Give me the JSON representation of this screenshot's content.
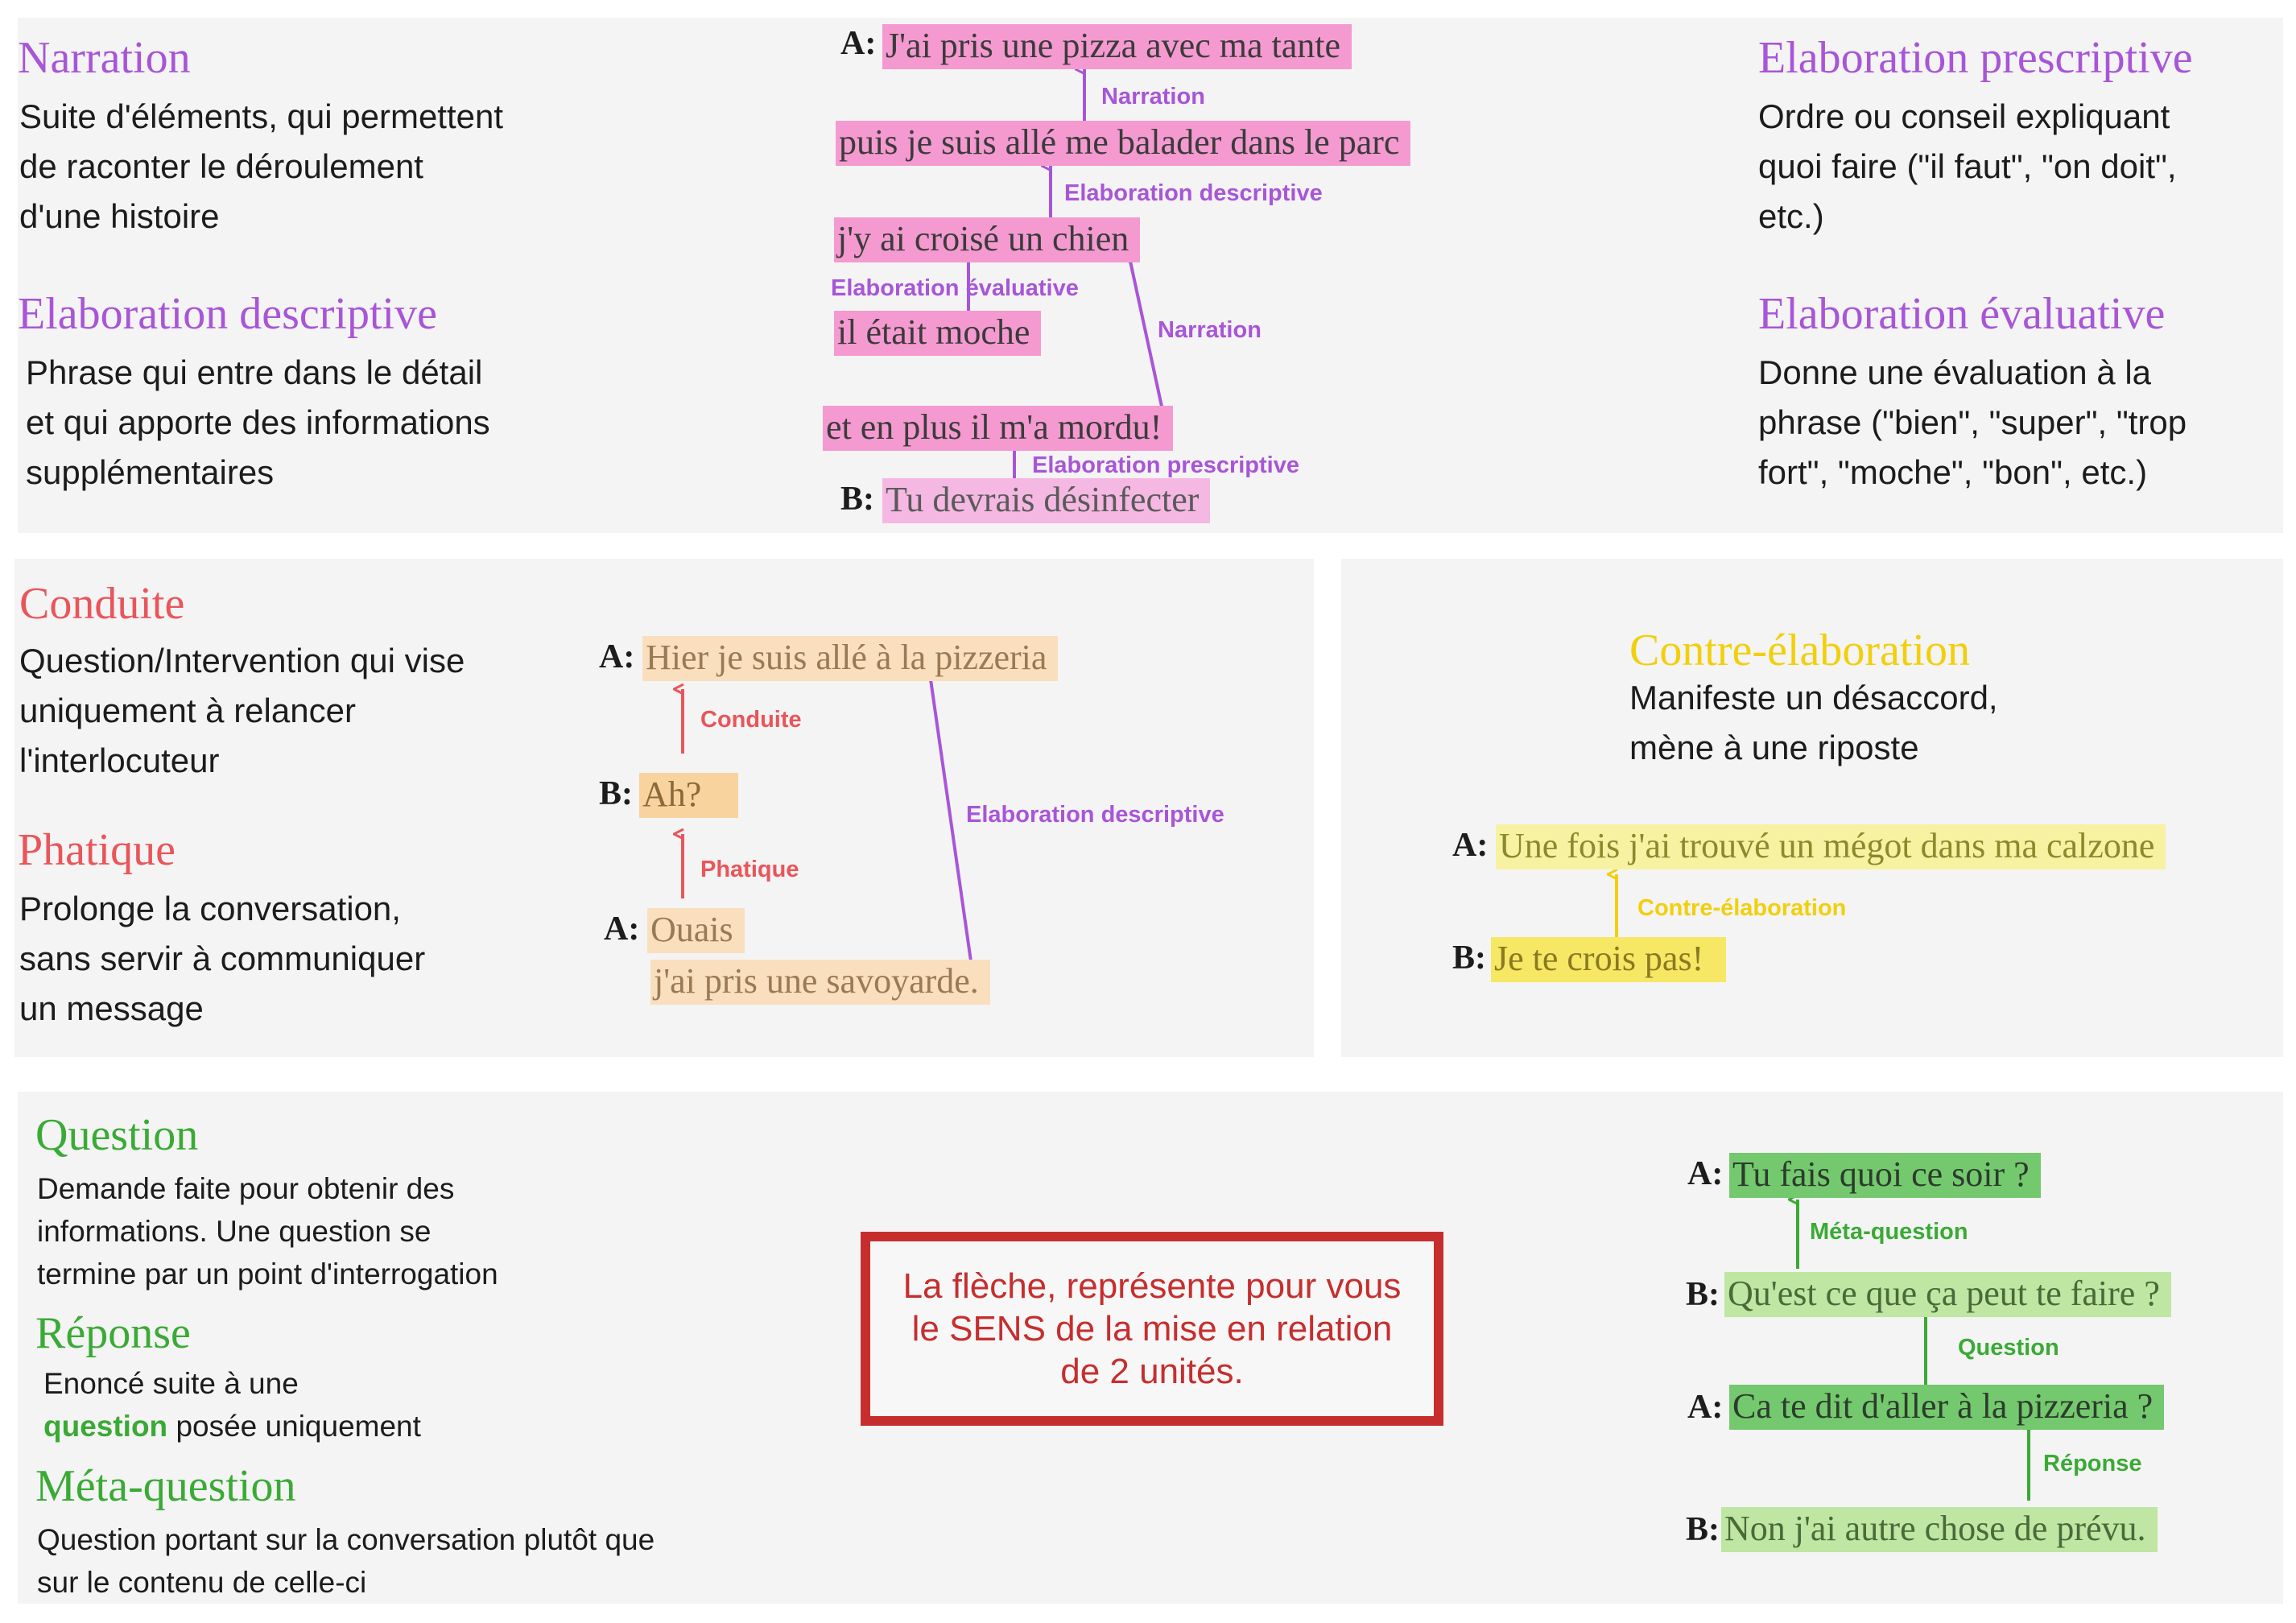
{
  "colors": {
    "purple": "#a855d8",
    "red": "#e9555a",
    "yellow": "#f2cf0a",
    "green": "#3aaa35",
    "note_border": "#c62e2e",
    "panel_bg": "#f4f4f4"
  },
  "narrative_panel": {
    "left_defs": [
      {
        "title": "Narration",
        "lines": [
          "Suite d'éléments, qui permettent",
          "de raconter le déroulement",
          "d'une histoire"
        ]
      },
      {
        "title": "Elaboration descriptive",
        "lines": [
          "Phrase qui entre dans le détail",
          "et qui apporte des informations",
          "supplémentaires"
        ]
      }
    ],
    "right_defs": [
      {
        "title": "Elaboration prescriptive",
        "lines": [
          "Ordre ou conseil expliquant",
          "quoi faire (\"il faut\", \"on doit\",",
          "etc.)"
        ]
      },
      {
        "title": "Elaboration évaluative",
        "lines": [
          "Donne une évaluation à la",
          "phrase (\"bien\", \"super\", \"trop",
          "fort\", \"moche\", \"bon\", etc.)"
        ]
      }
    ],
    "example": {
      "speaker_a": "A:",
      "speaker_b": "B:",
      "utterances": [
        "J'ai pris une pizza avec ma tante",
        "puis je suis allé me balader dans le parc",
        "j'y ai croisé un chien",
        "il était moche",
        "et en plus il m'a mordu!",
        "Tu devrais désinfecter"
      ],
      "relations": [
        "Narration",
        "Elaboration descriptive",
        "Elaboration évaluative",
        "Narration",
        "Elaboration prescriptive"
      ]
    }
  },
  "conduct_panel": {
    "defs": [
      {
        "title": "Conduite",
        "lines": [
          "Question/Intervention qui vise",
          "uniquement à relancer",
          "l'interlocuteur"
        ]
      },
      {
        "title": "Phatique",
        "lines": [
          "Prolonge la conversation,",
          "sans servir à communiquer",
          "un message"
        ]
      }
    ],
    "example": {
      "speakers": [
        "A:",
        "B:",
        "A:"
      ],
      "utterances": [
        "Hier je suis allé à la pizzeria",
        "Ah?",
        "Ouais",
        "j'ai pris  une savoyarde."
      ],
      "relations": [
        "Conduite",
        "Phatique",
        "Elaboration descriptive"
      ]
    }
  },
  "counter_panel": {
    "def": {
      "title": "Contre-élaboration",
      "lines": [
        "Manifeste un désaccord,",
        "mène à une riposte"
      ]
    },
    "example": {
      "speakers": [
        "A:",
        "B:"
      ],
      "utterances": [
        "Une fois j'ai trouvé un mégot dans ma calzone",
        "Je te crois pas!"
      ],
      "relation": "Contre-élaboration"
    }
  },
  "question_panel": {
    "defs": [
      {
        "title": "Question",
        "lines": [
          "Demande faite pour obtenir des",
          "informations. Une question se",
          "termine par un point d'interrogation"
        ]
      },
      {
        "title": "Réponse",
        "line1": "Enoncé suite à une",
        "line2_highlight": "question",
        "line2_rest": " posée uniquement"
      },
      {
        "title": "Méta-question",
        "lines": [
          "Question portant sur la conversation plutôt que",
          "sur le contenu de celle-ci"
        ]
      }
    ],
    "note": "La flèche, représente pour vous\nle SENS de la mise en relation\nde 2 unités.",
    "example": {
      "speakers": [
        "A:",
        "B:",
        "A:",
        "B:"
      ],
      "utterances": [
        "Tu fais quoi ce soir ?",
        "Qu'est ce que ça peut te faire ?",
        "Ca te dit d'aller à la pizzeria ?",
        "Non j'ai autre  chose de prévu."
      ],
      "relations": [
        "Méta-question",
        "Question",
        "Réponse"
      ]
    }
  }
}
